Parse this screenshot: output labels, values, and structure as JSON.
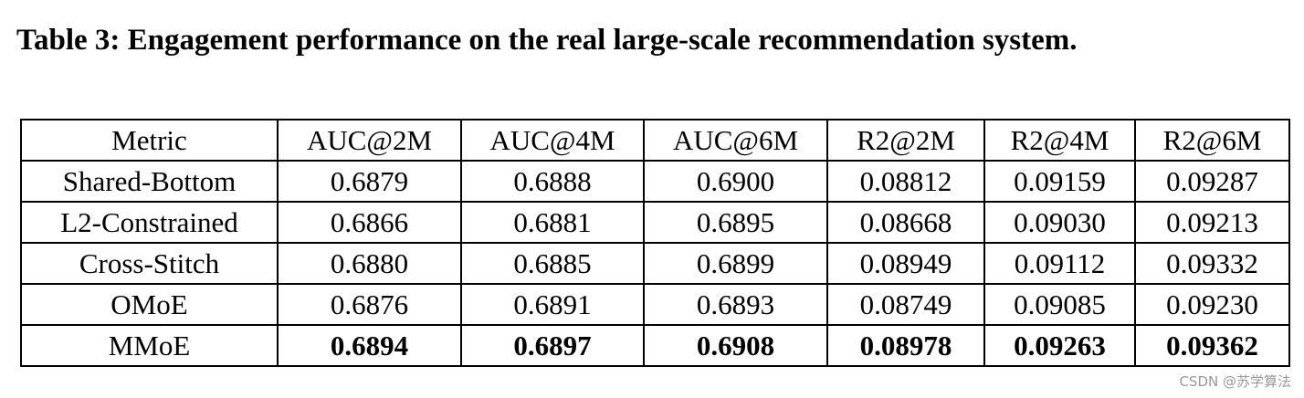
{
  "title": "Table 3: Engagement performance on the real large-scale recommendation system.",
  "table": {
    "header": [
      "Metric",
      "AUC@2M",
      "AUC@4M",
      "AUC@6M",
      "R2@2M",
      "R2@4M",
      "R2@6M"
    ],
    "rows": [
      [
        "Shared-Bottom",
        "0.6879",
        "0.6888",
        "0.6900",
        "0.08812",
        "0.09159",
        "0.09287"
      ],
      [
        "L2-Constrained",
        "0.6866",
        "0.6881",
        "0.6895",
        "0.08668",
        "0.09030",
        "0.09213"
      ],
      [
        "Cross-Stitch",
        "0.6880",
        "0.6885",
        "0.6899",
        "0.08949",
        "0.09112",
        "0.09332"
      ],
      [
        "OMoE",
        "0.6876",
        "0.6891",
        "0.6893",
        "0.08749",
        "0.09085",
        "0.09230"
      ],
      [
        "MMoE",
        "0.6894",
        "0.6897",
        "0.6908",
        "0.08978",
        "0.09263",
        "0.09362"
      ]
    ]
  },
  "watermark": "CSDN @苏学算法"
}
